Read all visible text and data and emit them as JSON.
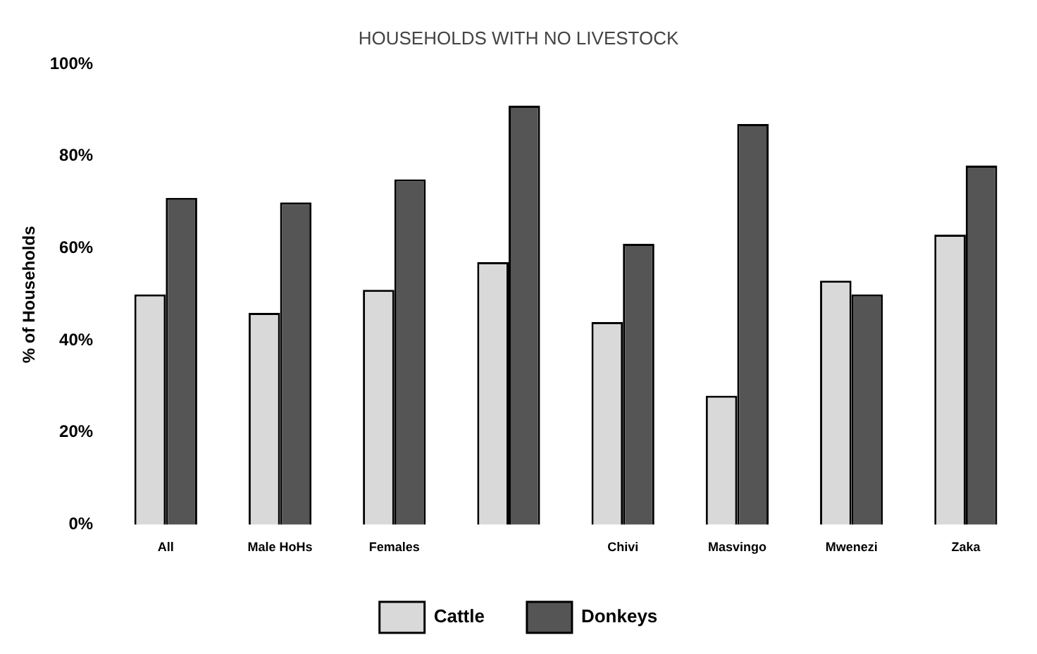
{
  "chart_data": {
    "type": "bar",
    "title": "HOUSEHOLDS WITH NO LIVESTOCK",
    "ylabel": "% of Households",
    "categories": [
      "All",
      "Male HoHs",
      "Females",
      null,
      "Chivi",
      "Masvingo",
      "Mwenezi",
      "Zaka"
    ],
    "series": [
      {
        "name": "Cattle",
        "color": "#d9d9d9",
        "values": [
          50,
          46,
          51,
          57,
          44,
          28,
          53,
          63
        ]
      },
      {
        "name": "Donkeys",
        "color": "#555555",
        "values": [
          71,
          70,
          75,
          91,
          61,
          87,
          50,
          78
        ]
      }
    ],
    "ylim": [
      0,
      100
    ],
    "yticks": [
      {
        "value": 0,
        "label": "0%"
      },
      {
        "value": 20,
        "label": "20%"
      },
      {
        "value": 40,
        "label": "40%"
      },
      {
        "value": 60,
        "label": "60%"
      },
      {
        "value": 80,
        "label": "80%"
      },
      {
        "value": 100,
        "label": "100%"
      }
    ],
    "grid": false,
    "legend": "bottom"
  }
}
